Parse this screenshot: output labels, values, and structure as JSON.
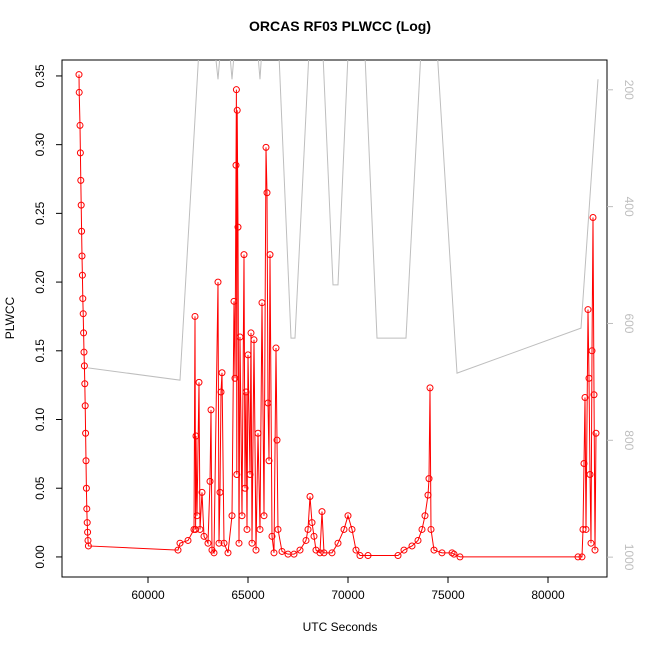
{
  "chart_data": {
    "type": "line",
    "title": "ORCAS RF03 PLWCC (Log)",
    "x_label": "UTC Seconds",
    "y_label": "PLWCC",
    "xlim": [
      55700,
      82950
    ],
    "xticks": [
      60000,
      65000,
      70000,
      75000,
      80000
    ],
    "ylim": [
      -0.0146,
      0.3616
    ],
    "yticks": [
      {
        "value": 0,
        "label": "0.00"
      },
      {
        "value": 0.05,
        "label": "0.05"
      },
      {
        "value": 0.1,
        "label": "0.10"
      },
      {
        "value": 0.15,
        "label": "0.15"
      },
      {
        "value": 0.2,
        "label": "0.20"
      },
      {
        "value": 0.25,
        "label": "0.25"
      },
      {
        "value": 0.3,
        "label": "0.30"
      },
      {
        "value": 0.35,
        "label": "0.35"
      }
    ],
    "y2lim": [
      1034,
      149
    ],
    "y2ticks": [
      200,
      400,
      600,
      800,
      1000
    ],
    "series": [
      {
        "color": "#ff0000",
        "marker": "circle",
        "x": [
          56550,
          56560,
          56600,
          56620,
          56640,
          56660,
          56680,
          56700,
          56720,
          56740,
          56760,
          56780,
          56800,
          56820,
          56840,
          56860,
          56880,
          56900,
          56920,
          56940,
          56960,
          56980,
          57000,
          57020,
          61500,
          61600,
          62000,
          62300,
          62350,
          62380,
          62400,
          62450,
          62550,
          62600,
          62700,
          62800,
          63000,
          63100,
          63150,
          63200,
          63300,
          63500,
          63550,
          63600,
          63650,
          63700,
          63800,
          64000,
          64200,
          64300,
          64350,
          64400,
          64420,
          64440,
          64460,
          64500,
          64550,
          64600,
          64700,
          64800,
          64850,
          64900,
          64950,
          65000,
          65100,
          65150,
          65200,
          65300,
          65400,
          65500,
          65600,
          65700,
          65800,
          65900,
          65950,
          66000,
          66050,
          66100,
          66200,
          66300,
          66400,
          66450,
          66500,
          66700,
          67000,
          67300,
          67600,
          67900,
          68000,
          68100,
          68200,
          68300,
          68400,
          68600,
          68700,
          68800,
          69200,
          69500,
          69800,
          70000,
          70200,
          70400,
          70600,
          71000,
          72500,
          72800,
          73200,
          73500,
          73700,
          73850,
          74000,
          74050,
          74100,
          74150,
          74300,
          74700,
          75200,
          75300,
          75600,
          81500,
          81700,
          81750,
          81800,
          81850,
          81900,
          82000,
          82050,
          82100,
          82150,
          82200,
          82250,
          82300,
          82350,
          82400
        ],
        "values": [
          0.351,
          0.338,
          0.314,
          0.294,
          0.274,
          0.256,
          0.237,
          0.219,
          0.205,
          0.188,
          0.177,
          0.163,
          0.149,
          0.139,
          0.126,
          0.11,
          0.09,
          0.07,
          0.05,
          0.035,
          0.025,
          0.018,
          0.012,
          0.008,
          0.005,
          0.01,
          0.012,
          0.02,
          0.175,
          0.02,
          0.088,
          0.03,
          0.127,
          0.02,
          0.047,
          0.015,
          0.01,
          0.055,
          0.107,
          0.005,
          0.003,
          0.2,
          0.01,
          0.047,
          0.12,
          0.134,
          0.01,
          0.003,
          0.03,
          0.186,
          0.13,
          0.285,
          0.34,
          0.06,
          0.325,
          0.24,
          0.01,
          0.16,
          0.03,
          0.22,
          0.05,
          0.12,
          0.02,
          0.147,
          0.06,
          0.163,
          0.01,
          0.158,
          0.005,
          0.09,
          0.02,
          0.185,
          0.03,
          0.298,
          0.265,
          0.112,
          0.07,
          0.22,
          0.015,
          0.003,
          0.152,
          0.085,
          0.02,
          0.004,
          0.002,
          0.002,
          0.005,
          0.012,
          0.02,
          0.044,
          0.025,
          0.015,
          0.005,
          0.003,
          0.033,
          0.003,
          0.003,
          0.01,
          0.02,
          0.03,
          0.02,
          0.005,
          0.001,
          0.001,
          0.001,
          0.005,
          0.008,
          0.012,
          0.02,
          0.03,
          0.045,
          0.057,
          0.123,
          0.02,
          0.005,
          0.003,
          0.003,
          0.002,
          0,
          0,
          0,
          0.02,
          0.068,
          0.116,
          0.02,
          0.18,
          0.13,
          0.06,
          0.01,
          0.15,
          0.247,
          0.118,
          0.005,
          0.09
        ]
      },
      {
        "color": "#bebebe",
        "axis": "y2",
        "x": [
          57000,
          61600,
          62600,
          63250,
          63500,
          63700,
          64000,
          64200,
          64400,
          65400,
          65600,
          65750,
          66500,
          67150,
          67350,
          68100,
          68700,
          69250,
          69500,
          70050,
          70800,
          71450,
          72900,
          73700,
          74400,
          75450,
          81650,
          82500
        ],
        "values": [
          676,
          697,
          100,
          100,
          182,
          100,
          100,
          182,
          100,
          100,
          182,
          100,
          100,
          625,
          625,
          100,
          100,
          534,
          534,
          100,
          100,
          625,
          625,
          100,
          100,
          685,
          608,
          182
        ]
      }
    ]
  }
}
